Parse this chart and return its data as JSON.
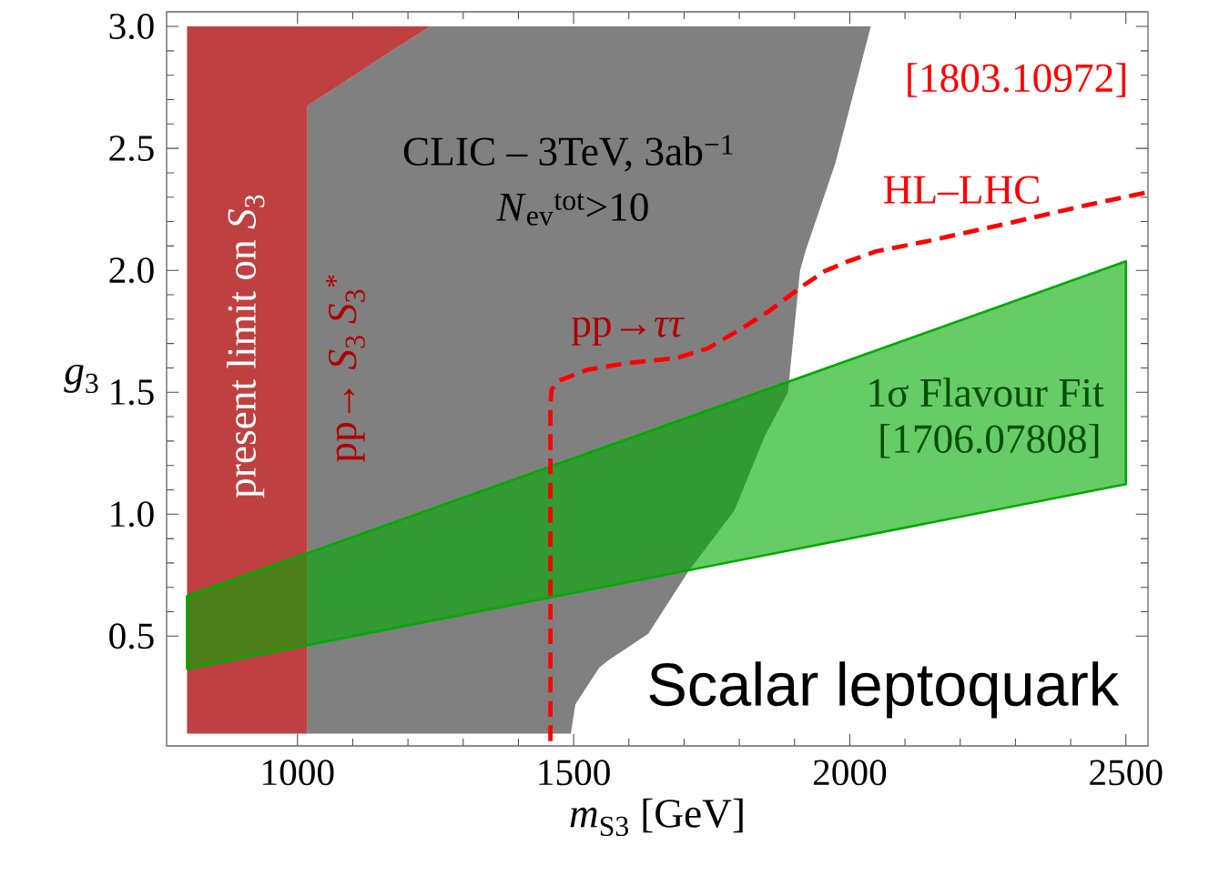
{
  "chart_data": {
    "type": "area",
    "xlabel": "*m*$_{S3}$  [GeV]",
    "ylabel": "*g*$_{3}$",
    "xlim": [
      763,
      2540
    ],
    "ylim": [
      0.05,
      3.06
    ],
    "xticks": [
      1000,
      1500,
      2000,
      2500
    ],
    "yticks": [
      {
        "value": 0.5,
        "label": "0.5"
      },
      {
        "value": 1.0,
        "label": "1.0"
      },
      {
        "value": 1.5,
        "label": "1.5"
      },
      {
        "value": 2.0,
        "label": "2.0"
      },
      {
        "value": 2.5,
        "label": "2.5"
      },
      {
        "value": 3.0,
        "label": "3.0"
      }
    ],
    "grid": false,
    "series": [
      {
        "color": "#808080",
        "x": [
          1018,
          1495,
          1503,
          1546,
          1562,
          1635,
          1709,
          1791,
          1846,
          1888,
          1910,
          1920,
          1974,
          2038,
          1241,
          1170,
          1087,
          1018
        ],
        "values": [
          0.1,
          0.1,
          0.22,
          0.37,
          0.4,
          0.51,
          0.77,
          1.015,
          1.32,
          1.5,
          2.0,
          2.08,
          2.44,
          3.0,
          3.0,
          2.9,
          2.776,
          2.675
        ]
      },
      {
        "name": "present limit on *S*$_{3}$",
        "color": "#bf4040",
        "x": [
          800,
          800,
          1241,
          1170,
          1087,
          1018,
          1018
        ],
        "values": [
          0.1,
          3.0,
          3.0,
          2.9,
          2.776,
          2.675,
          0.1
        ]
      },
      {
        "name": "1σ  Flavour Fit",
        "color": "#00aa00",
        "x": [
          800,
          2500,
          2500,
          800
        ],
        "values": [
          0.366,
          1.123,
          2.037,
          0.664
        ]
      },
      {
        "type": "line",
        "name": "HL–LHC",
        "color": "#ff0000",
        "line_style": "dashed",
        "marker": "none",
        "x": [
          1458,
          1458,
          1460,
          1471,
          1526,
          1598,
          1686,
          1743,
          1801,
          1852,
          1911,
          1954,
          1997,
          2048,
          2142,
          2289,
          2434,
          2540
        ],
        "values": [
          0.07,
          1.45,
          1.51,
          1.545,
          1.593,
          1.62,
          1.64,
          1.68,
          1.757,
          1.83,
          1.93,
          1.996,
          2.037,
          2.078,
          2.12,
          2.194,
          2.27,
          2.32
        ]
      }
    ],
    "annotations": [
      "[1803.10972]",
      "CLIC – 3TeV, 3ab$^{−1}$",
      "*N*$_{ev}$$^{tot}$>10",
      "pp→ *S*$_{3}$ *S*$_{3}$$^{*}$",
      "pp→*ττ*",
      "[1706.07808]",
      "Scalar leptoquark"
    ]
  }
}
